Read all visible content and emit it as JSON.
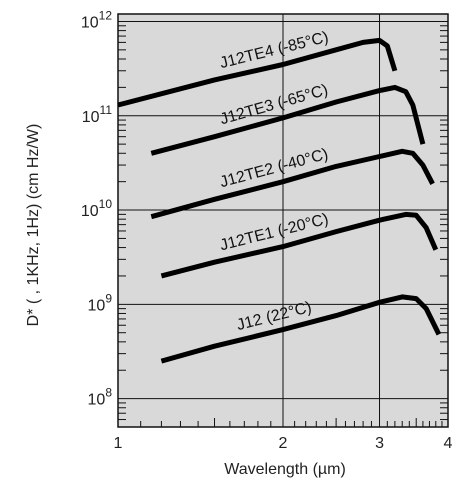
{
  "chart_data": {
    "type": "line",
    "xlabel": "Wavelength (µm)",
    "ylabel": "D* ( , 1KHz, 1Hz) (cm  Hz/W)",
    "xscale": "log",
    "yscale": "log",
    "xlim": [
      1,
      4
    ],
    "ylim": [
      50000000.0,
      1200000000000.0
    ],
    "grid": true,
    "xticks": [
      {
        "value": 1,
        "label": "1"
      },
      {
        "value": 2,
        "label": "2"
      },
      {
        "value": 3,
        "label": "3"
      },
      {
        "value": 4,
        "label": "4"
      }
    ],
    "yticks": [
      {
        "value": 100000000.0,
        "base": "10",
        "exp": "8"
      },
      {
        "value": 1000000000.0,
        "base": "10",
        "exp": "9"
      },
      {
        "value": 10000000000.0,
        "base": "10",
        "exp": "10"
      },
      {
        "value": 100000000000.0,
        "base": "10",
        "exp": "11"
      },
      {
        "value": 1000000000000.0,
        "base": "10",
        "exp": "12"
      }
    ],
    "series": [
      {
        "name": "J12TE4 (-85°C)",
        "points": [
          [
            1.0,
            130000000000.0
          ],
          [
            1.5,
            240000000000.0
          ],
          [
            2.0,
            350000000000.0
          ],
          [
            2.5,
            500000000000.0
          ],
          [
            2.8,
            600000000000.0
          ],
          [
            3.0,
            630000000000.0
          ],
          [
            3.1,
            550000000000.0
          ],
          [
            3.2,
            300000000000.0
          ]
        ]
      },
      {
        "name": "J12TE3 (-65°C)",
        "points": [
          [
            1.15,
            40000000000.0
          ],
          [
            1.5,
            60000000000.0
          ],
          [
            2.0,
            95000000000.0
          ],
          [
            2.5,
            140000000000.0
          ],
          [
            3.0,
            185000000000.0
          ],
          [
            3.2,
            200000000000.0
          ],
          [
            3.35,
            180000000000.0
          ],
          [
            3.45,
            130000000000.0
          ],
          [
            3.6,
            50000000000.0
          ]
        ]
      },
      {
        "name": "J12TE2 (-40°C)",
        "points": [
          [
            1.15,
            8500000000.0
          ],
          [
            1.5,
            13000000000.0
          ],
          [
            2.0,
            20000000000.0
          ],
          [
            2.5,
            29000000000.0
          ],
          [
            3.0,
            37000000000.0
          ],
          [
            3.3,
            42000000000.0
          ],
          [
            3.45,
            40000000000.0
          ],
          [
            3.6,
            30000000000.0
          ],
          [
            3.75,
            19000000000.0
          ]
        ]
      },
      {
        "name": "J12TE1 (-20°C)",
        "points": [
          [
            1.2,
            2000000000.0
          ],
          [
            1.5,
            2800000000.0
          ],
          [
            2.0,
            4100000000.0
          ],
          [
            2.5,
            5900000000.0
          ],
          [
            3.0,
            7800000000.0
          ],
          [
            3.35,
            9000000000.0
          ],
          [
            3.5,
            8800000000.0
          ],
          [
            3.65,
            6500000000.0
          ],
          [
            3.8,
            3800000000.0
          ]
        ]
      },
      {
        "name": "J12 (22°C)",
        "points": [
          [
            1.2,
            250000000.0
          ],
          [
            1.5,
            360000000.0
          ],
          [
            2.0,
            540000000.0
          ],
          [
            2.5,
            760000000.0
          ],
          [
            3.0,
            1050000000.0
          ],
          [
            3.3,
            1200000000.0
          ],
          [
            3.5,
            1150000000.0
          ],
          [
            3.65,
            900000000.0
          ],
          [
            3.85,
            480000000.0
          ]
        ]
      }
    ],
    "colors": {
      "grid": "#111111",
      "line": "#000000",
      "plot_background": "#d9d9d9"
    }
  }
}
